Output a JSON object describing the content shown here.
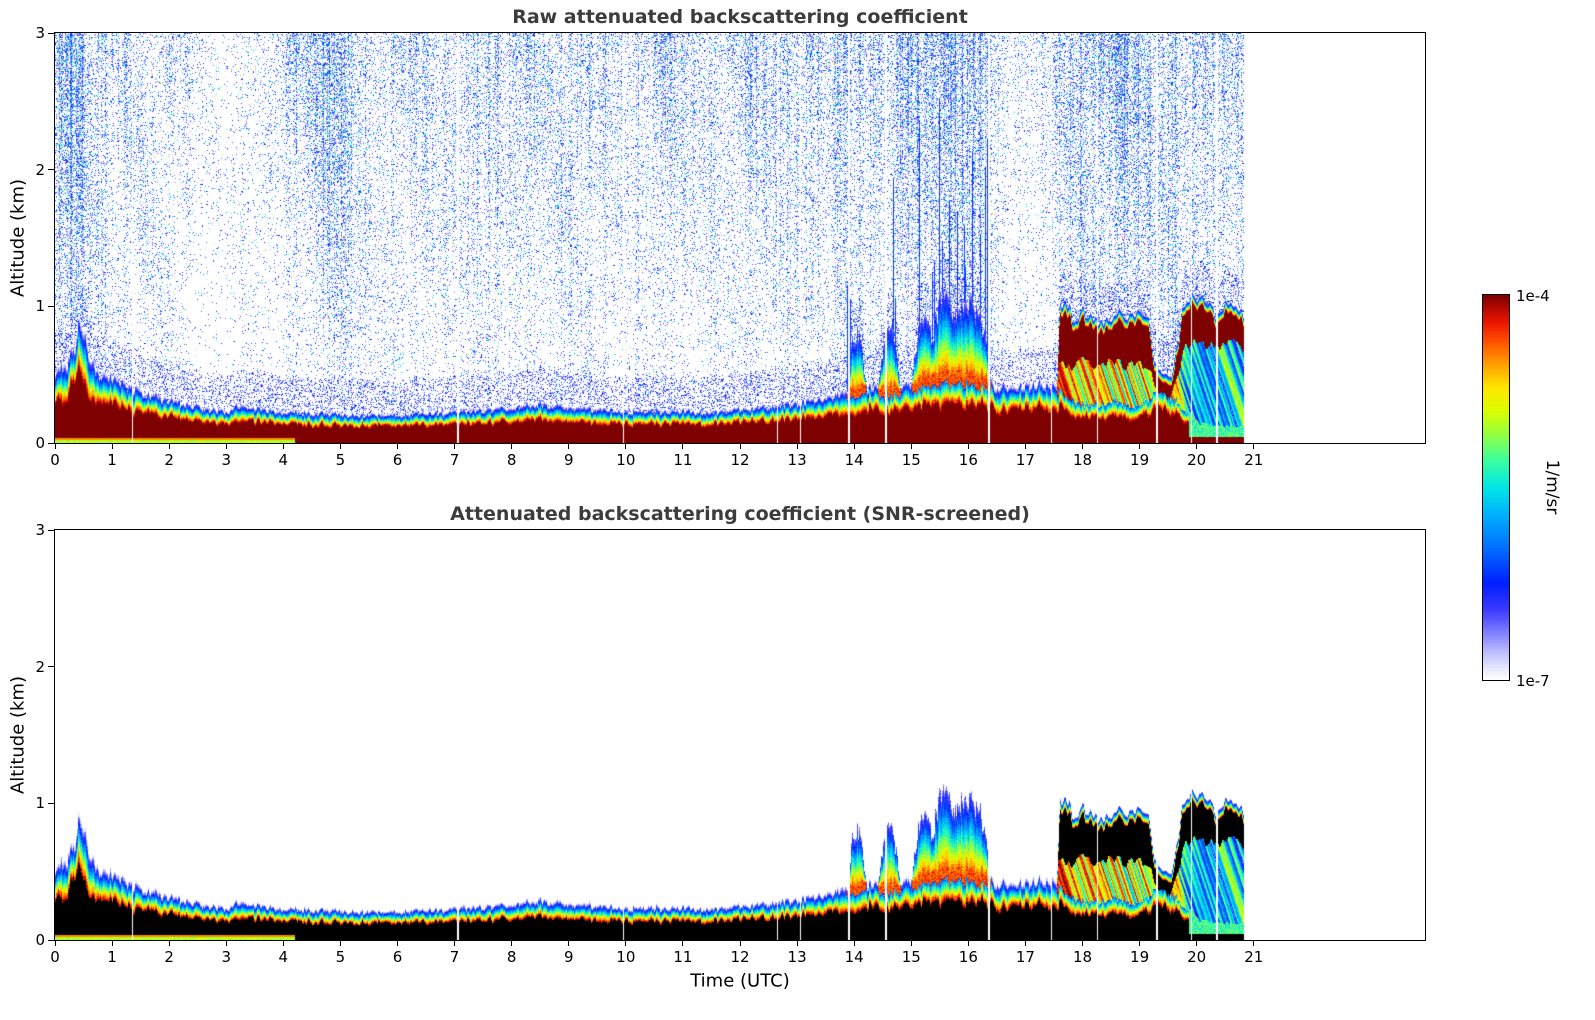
{
  "figure": {
    "colorbar": {
      "top_label": "1e-4",
      "bottom_label": "1e-7",
      "unit_label": "1/m/sr"
    }
  },
  "chart_data": [
    {
      "type": "heatmap",
      "title": "Raw attenuated backscattering coefficient",
      "xlabel": "",
      "ylabel": "Altitude (km)",
      "x_range": [
        0,
        24
      ],
      "x_ticks": [
        0,
        1,
        2,
        3,
        4,
        5,
        6,
        7,
        8,
        9,
        10,
        11,
        12,
        13,
        14,
        15,
        16,
        17,
        18,
        19,
        20,
        21
      ],
      "y_range": [
        0,
        3
      ],
      "y_ticks": [
        0,
        1,
        2,
        3
      ],
      "grid": false,
      "colorbar": {
        "min": 1e-07,
        "max": 0.0001,
        "scale": "log",
        "unit": "1/m/sr"
      },
      "noise_screened": false
    },
    {
      "type": "heatmap",
      "title": "Attenuated backscattering coefficient (SNR-screened)",
      "xlabel": "Time (UTC)",
      "ylabel": "Altitude (km)",
      "x_range": [
        0,
        24
      ],
      "x_ticks": [
        0,
        1,
        2,
        3,
        4,
        5,
        6,
        7,
        8,
        9,
        10,
        11,
        12,
        13,
        14,
        15,
        16,
        17,
        18,
        19,
        20,
        21
      ],
      "y_range": [
        0,
        3
      ],
      "y_ticks": [
        0,
        1,
        2,
        3
      ],
      "grid": false,
      "colorbar": {
        "min": 1e-07,
        "max": 0.0001,
        "scale": "log",
        "unit": "1/m/sr"
      },
      "noise_screened": true
    }
  ],
  "heatmap_model": {
    "data_end_utc": 20.82,
    "log10_range": [
      -7,
      -4
    ],
    "regimes": {
      "spike_start": 13.8,
      "spike_end": 16.45,
      "cloud_start": 17.55
    },
    "surface_top_km": [
      [
        0,
        0.55
      ],
      [
        0.2,
        0.6
      ],
      [
        0.35,
        0.75
      ],
      [
        0.42,
        0.95
      ],
      [
        0.5,
        0.8
      ],
      [
        0.7,
        0.55
      ],
      [
        1,
        0.47
      ],
      [
        1.4,
        0.4
      ],
      [
        1.8,
        0.34
      ],
      [
        2.2,
        0.3
      ],
      [
        2.6,
        0.26
      ],
      [
        3,
        0.23
      ],
      [
        3.2,
        0.3
      ],
      [
        3.5,
        0.26
      ],
      [
        4,
        0.23
      ],
      [
        4.5,
        0.22
      ],
      [
        5,
        0.22
      ],
      [
        5.5,
        0.21
      ],
      [
        6,
        0.21
      ],
      [
        6.5,
        0.22
      ],
      [
        7,
        0.23
      ],
      [
        7.5,
        0.25
      ],
      [
        8,
        0.27
      ],
      [
        8.5,
        0.29
      ],
      [
        9,
        0.27
      ],
      [
        9.5,
        0.25
      ],
      [
        10,
        0.24
      ],
      [
        10.5,
        0.24
      ],
      [
        11,
        0.24
      ],
      [
        11.5,
        0.24
      ],
      [
        12,
        0.25
      ],
      [
        12.5,
        0.27
      ],
      [
        13,
        0.3
      ],
      [
        13.5,
        0.34
      ],
      [
        13.9,
        0.4
      ],
      [
        14.2,
        0.42
      ],
      [
        14.6,
        0.4
      ],
      [
        15,
        0.45
      ],
      [
        15.5,
        0.5
      ],
      [
        16,
        0.5
      ],
      [
        16.4,
        0.45
      ],
      [
        16.8,
        0.42
      ],
      [
        17.2,
        0.44
      ],
      [
        17.6,
        0.42
      ],
      [
        17.8,
        0.35
      ],
      [
        18.2,
        0.32
      ],
      [
        18.6,
        0.34
      ],
      [
        19,
        0.3
      ],
      [
        19.3,
        0.42
      ],
      [
        19.6,
        0.38
      ],
      [
        19.8,
        0.25
      ],
      [
        20,
        0.15
      ],
      [
        20.3,
        0.12
      ],
      [
        20.8,
        0.12
      ]
    ],
    "cloud_top_km": [
      [
        13.8,
        0
      ],
      [
        13.95,
        0.7
      ],
      [
        14.05,
        0.85
      ],
      [
        14.15,
        0.6
      ],
      [
        14.3,
        0
      ],
      [
        14.5,
        0.7
      ],
      [
        14.6,
        0.9
      ],
      [
        14.75,
        0.6
      ],
      [
        14.9,
        0
      ],
      [
        15.1,
        0.8
      ],
      [
        15.25,
        0.95
      ],
      [
        15.35,
        0.75
      ],
      [
        15.5,
        1.05
      ],
      [
        15.6,
        1.1
      ],
      [
        15.75,
        0.9
      ],
      [
        15.9,
        1.05
      ],
      [
        16.05,
        1.0
      ],
      [
        16.2,
        0.95
      ],
      [
        16.35,
        0.6
      ],
      [
        16.45,
        0
      ],
      [
        17.5,
        0
      ],
      [
        17.6,
        1.0
      ],
      [
        17.7,
        1.05
      ],
      [
        17.85,
        0.9
      ],
      [
        18,
        0.97
      ],
      [
        18.2,
        0.9
      ],
      [
        18.4,
        0.88
      ],
      [
        18.6,
        0.95
      ],
      [
        18.8,
        0.9
      ],
      [
        19,
        1.0
      ],
      [
        19.15,
        0.95
      ],
      [
        19.25,
        0.6
      ],
      [
        19.4,
        0.5
      ],
      [
        19.55,
        0.5
      ],
      [
        19.65,
        0.7
      ],
      [
        19.75,
        1.0
      ],
      [
        19.9,
        1.1
      ],
      [
        20.05,
        1.05
      ],
      [
        20.2,
        1.0
      ],
      [
        20.35,
        0.95
      ],
      [
        20.5,
        1.0
      ],
      [
        20.65,
        1.0
      ],
      [
        20.8,
        0.95
      ]
    ],
    "cloud_base_km": [
      [
        17.6,
        0.6
      ],
      [
        17.8,
        0.55
      ],
      [
        18,
        0.6
      ],
      [
        18.2,
        0.55
      ],
      [
        18.5,
        0.6
      ],
      [
        18.8,
        0.55
      ],
      [
        19,
        0.6
      ],
      [
        19.2,
        0.5
      ],
      [
        19.3,
        0.35
      ],
      [
        19.5,
        0.3
      ],
      [
        19.65,
        0.5
      ],
      [
        19.8,
        0.7
      ],
      [
        20,
        0.75
      ],
      [
        20.2,
        0.72
      ],
      [
        20.4,
        0.7
      ],
      [
        20.6,
        0.72
      ],
      [
        20.8,
        0.7
      ]
    ],
    "under_cloud_log10": [
      [
        17.55,
        -4.8
      ],
      [
        18.6,
        -4.85
      ],
      [
        19.0,
        -4.9
      ],
      [
        19.3,
        -4.8
      ],
      [
        19.65,
        -5.0
      ],
      [
        19.8,
        -5.6
      ],
      [
        20.1,
        -5.9
      ],
      [
        20.8,
        -5.8
      ]
    ],
    "noise_density": [
      [
        0,
        0.5
      ],
      [
        0.3,
        0.55
      ],
      [
        0.6,
        0.4
      ],
      [
        1,
        0.32
      ],
      [
        1.5,
        0.3
      ],
      [
        2,
        0.32
      ],
      [
        2.3,
        0.2
      ],
      [
        2.6,
        0.1
      ],
      [
        3,
        0.08
      ],
      [
        3.4,
        0.15
      ],
      [
        3.8,
        0.25
      ],
      [
        4.2,
        0.45
      ],
      [
        4.6,
        0.55
      ],
      [
        5,
        0.5
      ],
      [
        5.4,
        0.4
      ],
      [
        5.8,
        0.32
      ],
      [
        6.2,
        0.3
      ],
      [
        6.6,
        0.3
      ],
      [
        7,
        0.32
      ],
      [
        7.5,
        0.35
      ],
      [
        8,
        0.36
      ],
      [
        8.5,
        0.36
      ],
      [
        9,
        0.35
      ],
      [
        9.5,
        0.32
      ],
      [
        10,
        0.3
      ],
      [
        10.5,
        0.33
      ],
      [
        11,
        0.3
      ],
      [
        11.5,
        0.26
      ],
      [
        12,
        0.3
      ],
      [
        12.5,
        0.3
      ],
      [
        13,
        0.33
      ],
      [
        13.5,
        0.4
      ],
      [
        13.9,
        0.5
      ],
      [
        14.3,
        0.45
      ],
      [
        14.7,
        0.5
      ],
      [
        15,
        0.52
      ],
      [
        15.5,
        0.58
      ],
      [
        16,
        0.58
      ],
      [
        16.3,
        0.45
      ],
      [
        16.6,
        0.18
      ],
      [
        17,
        0.15
      ],
      [
        17.3,
        0.18
      ],
      [
        17.6,
        0.35
      ],
      [
        17.9,
        0.5
      ],
      [
        18.3,
        0.5
      ],
      [
        18.7,
        0.45
      ],
      [
        19,
        0.55
      ],
      [
        19.4,
        0.6
      ],
      [
        19.7,
        0.62
      ],
      [
        20,
        0.68
      ],
      [
        20.3,
        0.66
      ],
      [
        20.6,
        0.6
      ],
      [
        20.82,
        0.55
      ]
    ],
    "gap_times_utc": [
      1.35,
      7.05,
      9.95,
      12.65,
      13.05,
      13.9,
      14.55,
      16.35,
      17.45,
      18.25,
      19.3,
      19.9,
      20.35
    ],
    "colormap_stops": [
      [
        0.0,
        [
          255,
          255,
          255
        ]
      ],
      [
        0.03,
        [
          230,
          230,
          255
        ]
      ],
      [
        0.07,
        [
          190,
          190,
          255
        ]
      ],
      [
        0.12,
        [
          130,
          130,
          255
        ]
      ],
      [
        0.18,
        [
          60,
          60,
          255
        ]
      ],
      [
        0.25,
        [
          0,
          30,
          255
        ]
      ],
      [
        0.33,
        [
          0,
          100,
          255
        ]
      ],
      [
        0.42,
        [
          0,
          170,
          255
        ]
      ],
      [
        0.5,
        [
          0,
          230,
          230
        ]
      ],
      [
        0.57,
        [
          60,
          255,
          160
        ]
      ],
      [
        0.64,
        [
          150,
          255,
          60
        ]
      ],
      [
        0.7,
        [
          220,
          255,
          0
        ]
      ],
      [
        0.76,
        [
          255,
          230,
          0
        ]
      ],
      [
        0.82,
        [
          255,
          160,
          0
        ]
      ],
      [
        0.88,
        [
          255,
          80,
          0
        ]
      ],
      [
        0.93,
        [
          235,
          20,
          0
        ]
      ],
      [
        1.0,
        [
          127,
          0,
          0
        ]
      ]
    ],
    "screened_black_threshold_log10": -4.02,
    "seed_raw": 101,
    "seed_screened": 202
  }
}
